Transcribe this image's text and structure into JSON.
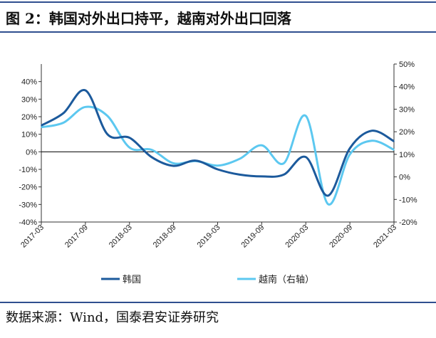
{
  "header": {
    "title": "图 2：韩国对外出口持平，越南对外出口回落"
  },
  "footer": {
    "source": "数据来源：Wind，国泰君安证券研究"
  },
  "chart_data": {
    "type": "line",
    "x": [
      "2017-03",
      "2017-06",
      "2017-09",
      "2017-12",
      "2018-03",
      "2018-06",
      "2018-09",
      "2018-12",
      "2019-03",
      "2019-06",
      "2019-09",
      "2019-12",
      "2020-03",
      "2020-06",
      "2020-09",
      "2020-12",
      "2021-03"
    ],
    "x_tick_labels": [
      "2017-03",
      "2017-09",
      "2018-03",
      "2018-09",
      "2019-03",
      "2019-09",
      "2020-03",
      "2020-09",
      "2021-03"
    ],
    "y_left": {
      "ylim": [
        -40,
        50
      ],
      "ticks": [
        "-40%",
        "-30%",
        "-20%",
        "-10%",
        "0%",
        "10%",
        "20%",
        "30%",
        "40%"
      ]
    },
    "y_right": {
      "ylim": [
        -20,
        50
      ],
      "ticks": [
        "-20%",
        "-10%",
        "0%",
        "10%",
        "20%",
        "30%",
        "40%",
        "50%"
      ]
    },
    "series": [
      {
        "name": "韩国",
        "axis": "left",
        "color": "#1c5a9c",
        "values": [
          15,
          22,
          35,
          10,
          8,
          -3,
          -8,
          -5,
          -10,
          -13,
          -14,
          -13,
          -3,
          -25,
          2,
          12,
          6
        ]
      },
      {
        "name": "越南（右轴）",
        "axis": "right",
        "color": "#5cc8f0",
        "values": [
          22,
          24,
          31,
          27,
          13,
          12,
          6,
          7,
          5,
          8,
          14,
          6,
          27,
          -12,
          10,
          16,
          12
        ]
      }
    ],
    "grid": false,
    "legend": "bottom"
  }
}
